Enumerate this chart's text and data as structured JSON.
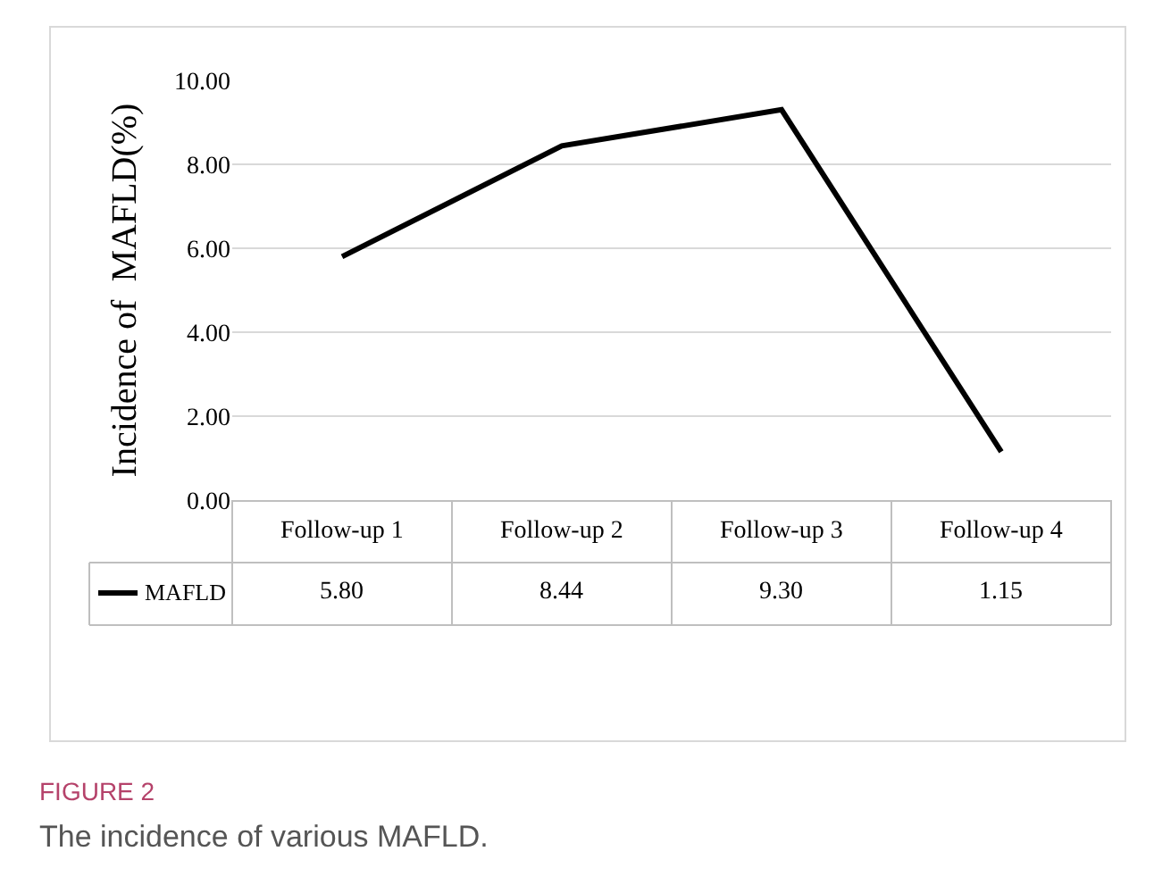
{
  "chart_data": {
    "type": "line",
    "ylabel": "Incidence of  MAFLD(%)",
    "categories": [
      "Follow-up 1",
      "Follow-up 2",
      "Follow-up 3",
      "Follow-up 4"
    ],
    "series": [
      {
        "name": "MAFLD",
        "color": "#000000",
        "values": [
          5.8,
          8.44,
          9.3,
          1.15
        ],
        "value_labels": [
          "5.80",
          "8.44",
          "9.30",
          "1.15"
        ]
      }
    ],
    "ylim": [
      0,
      10
    ],
    "yticks": [
      {
        "value": 0,
        "label": "0.00"
      },
      {
        "value": 2,
        "label": "2.00"
      },
      {
        "value": 4,
        "label": "4.00"
      },
      {
        "value": 6,
        "label": "6.00"
      },
      {
        "value": 8,
        "label": "8.00"
      },
      {
        "value": 10,
        "label": "10.00"
      }
    ],
    "grid": "y",
    "marker": "none",
    "line_style": "solid",
    "annotations": [
      "FIGURE 2",
      "The incidence of various MAFLD."
    ]
  }
}
